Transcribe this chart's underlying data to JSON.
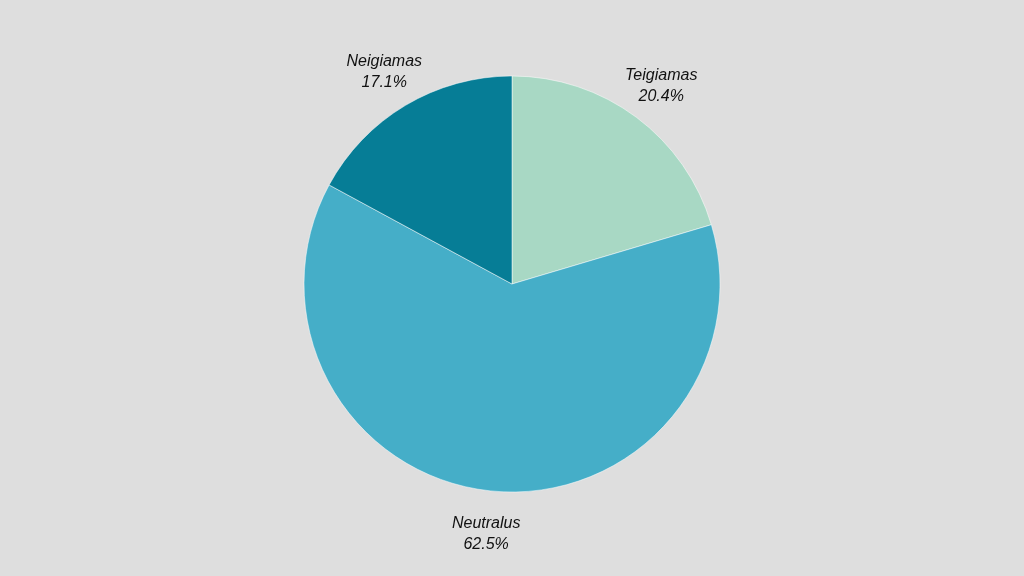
{
  "chart_data": {
    "type": "pie",
    "categories": [
      "Teigiamas",
      "Neutralus",
      "Neigiamas"
    ],
    "values": [
      20.4,
      62.5,
      17.1
    ],
    "value_labels": [
      "20.4%",
      "62.5%",
      "17.1%"
    ],
    "colors": [
      "#a8d8c4",
      "#45aec8",
      "#067d96"
    ]
  }
}
